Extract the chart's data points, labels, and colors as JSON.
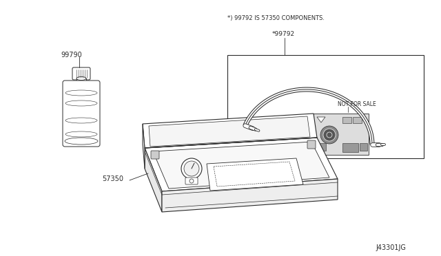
{
  "bg_color": "#ffffff",
  "line_color": "#2a2a2a",
  "label_color": "#2a2a2a",
  "note_text": "*) 99792 IS 57350 COMPONENTS.",
  "part_99792_label": "*99792",
  "part_99790_label": "99790",
  "part_57350_label": "57350",
  "diagram_id": "J43301JG",
  "not_for_sale": "NOT FOR SALE",
  "figsize": [
    6.4,
    3.72
  ],
  "dpi": 100
}
